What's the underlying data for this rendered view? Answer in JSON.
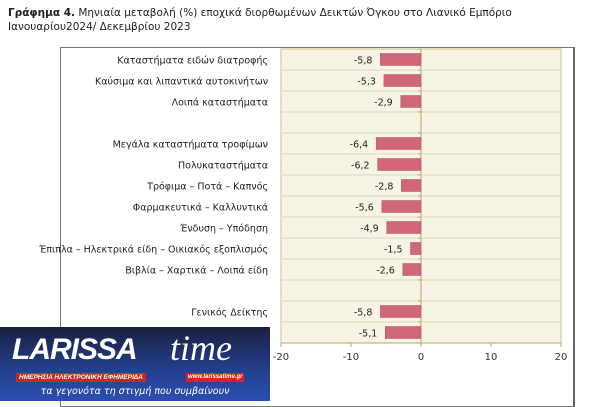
{
  "title": {
    "bold": "Γράφημα 4.",
    "text": " Μηνιαία μεταβολή (%) εποχικά διορθωμένων Δεικτών Όγκου στο Λιανικό Εμπόριο Ιανουαρίου2024/ Δεκεμβρίου 2023"
  },
  "chart_data": {
    "type": "bar",
    "orientation": "horizontal",
    "categories": [
      "Καταστήματα ειδών διατροφής",
      "Καύσιμα και λιπαντικά αυτοκινήτων",
      "Λοιπά καταστήματα",
      "",
      "Μεγάλα καταστήματα τροφίμων",
      "Πολυκαταστήματα",
      "Τρόφιμα – Ποτά – Καπνός",
      "Φαρμακευτικά – Καλλυντικά",
      "Ένδυση – Υπόδηση",
      "Έπιπλα – Ηλεκτρικά είδη – Οικιακός εξοπλισμός",
      "Βιβλία – Χαρτικά – Λοιπά είδη",
      "",
      "Γενικός Δείκτης",
      ""
    ],
    "values": [
      -5.8,
      -5.3,
      -2.9,
      null,
      -6.4,
      -6.2,
      -2.8,
      -5.6,
      -4.9,
      -1.5,
      -2.6,
      null,
      -5.8,
      -5.1
    ],
    "value_labels": [
      "-5,8",
      "-5,3",
      "-2,9",
      "",
      "-6,4",
      "-6,2",
      "-2,8",
      "-5,6",
      "-4,9",
      "-1,5",
      "-2,6",
      "",
      "-5,8",
      "-5,1"
    ],
    "xlim": [
      -20,
      20
    ],
    "xticks": [
      "-20",
      "-10",
      "0",
      "10",
      "20"
    ],
    "bar_color": "#d0667a",
    "plot_bg": "#f7f4e6",
    "grid": true
  },
  "logo": {
    "name": "LARISSA",
    "name2": "time",
    "website": "www.larissatime.gr",
    "subtitle": "ΗΜΕΡΗΣΙΑ ΗΛΕΚΤΡΟΝΙΚΗ ΕΦΗΜΕΡΙΔΑ",
    "slogan": "τα γεγονότα τη στιγμή που συμβαίνουν"
  }
}
